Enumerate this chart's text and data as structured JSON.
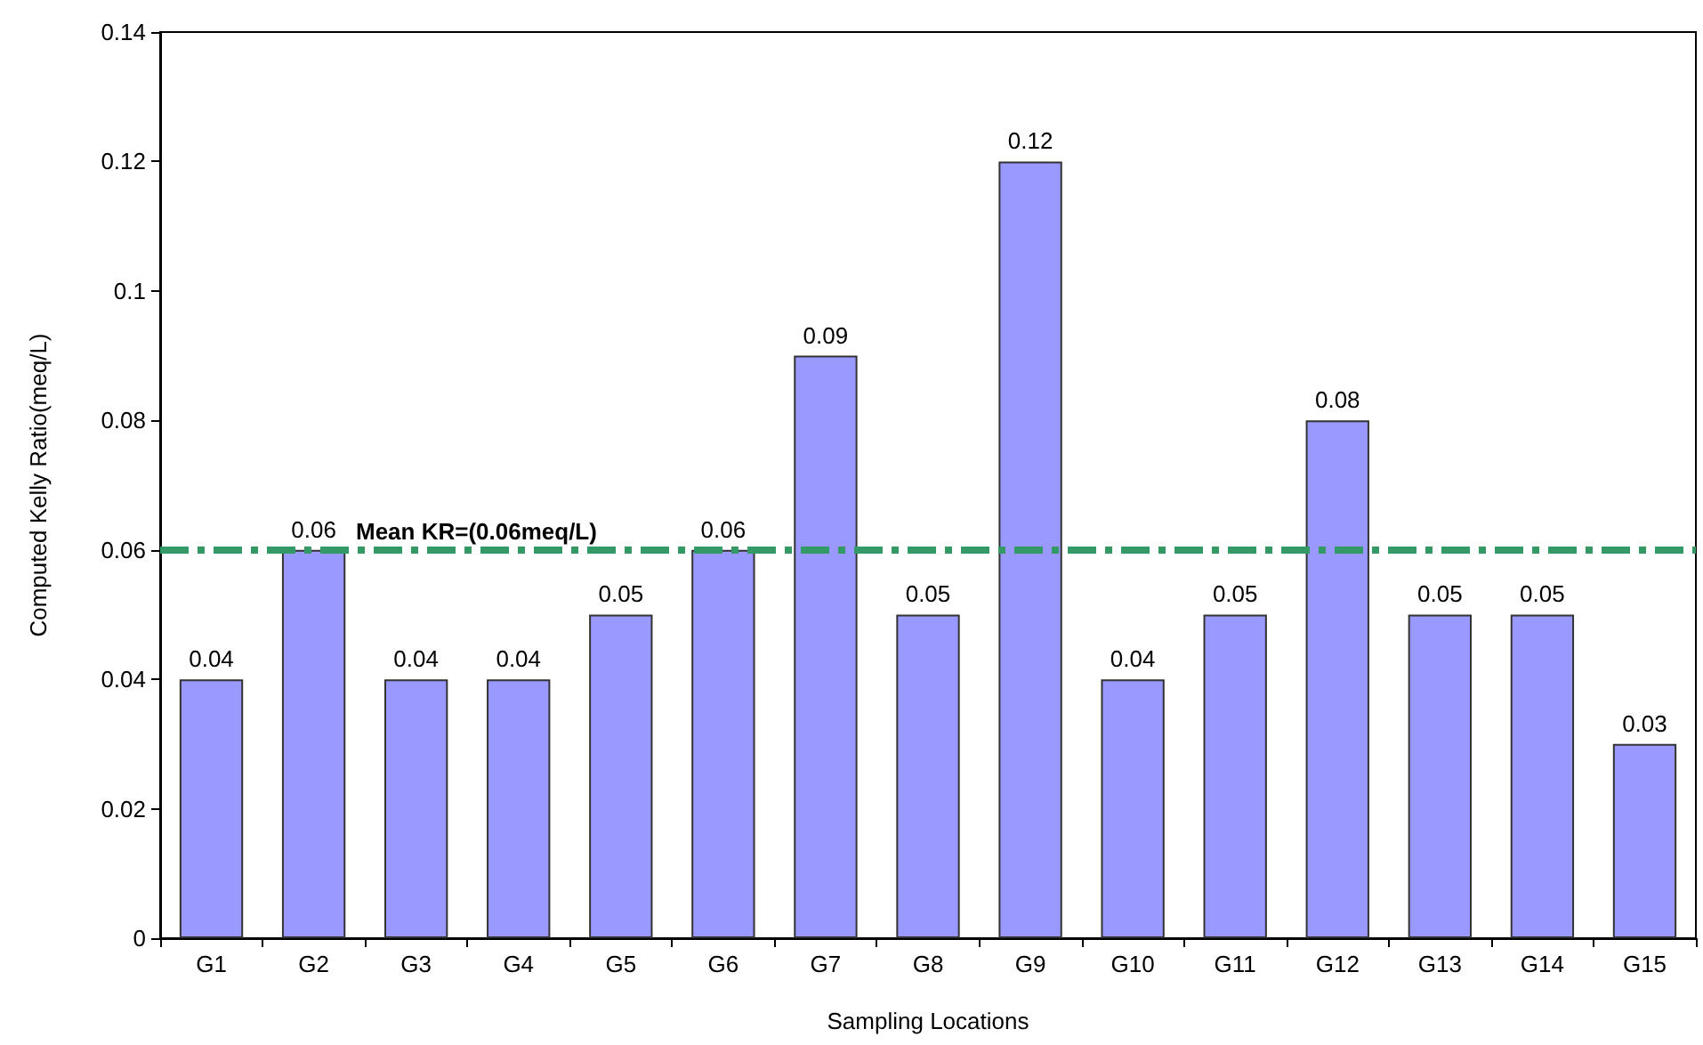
{
  "chart_data": {
    "type": "bar",
    "xlabel": "Sampling Locations",
    "ylabel": "Computed Kelly Ratio(meq/L)",
    "categories": [
      "G1",
      "G2",
      "G3",
      "G4",
      "G5",
      "G6",
      "G7",
      "G8",
      "G9",
      "G10",
      "G11",
      "G12",
      "G13",
      "G14",
      "G15"
    ],
    "values": [
      0.04,
      0.06,
      0.04,
      0.04,
      0.05,
      0.06,
      0.09,
      0.05,
      0.12,
      0.04,
      0.05,
      0.08,
      0.05,
      0.05,
      0.03
    ],
    "color": "#9999ff",
    "ylim": [
      0,
      0.14
    ],
    "yticks": [
      0,
      0.02,
      0.04,
      0.06,
      0.08,
      0.1,
      0.12,
      0.14
    ],
    "grid": false,
    "data_labels": true,
    "ref_lines": [
      {
        "axis": "y",
        "value": 0.06,
        "label": "Mean KR=(0.06meq/L)",
        "color": "#339966",
        "line_style": "dashed"
      }
    ]
  }
}
